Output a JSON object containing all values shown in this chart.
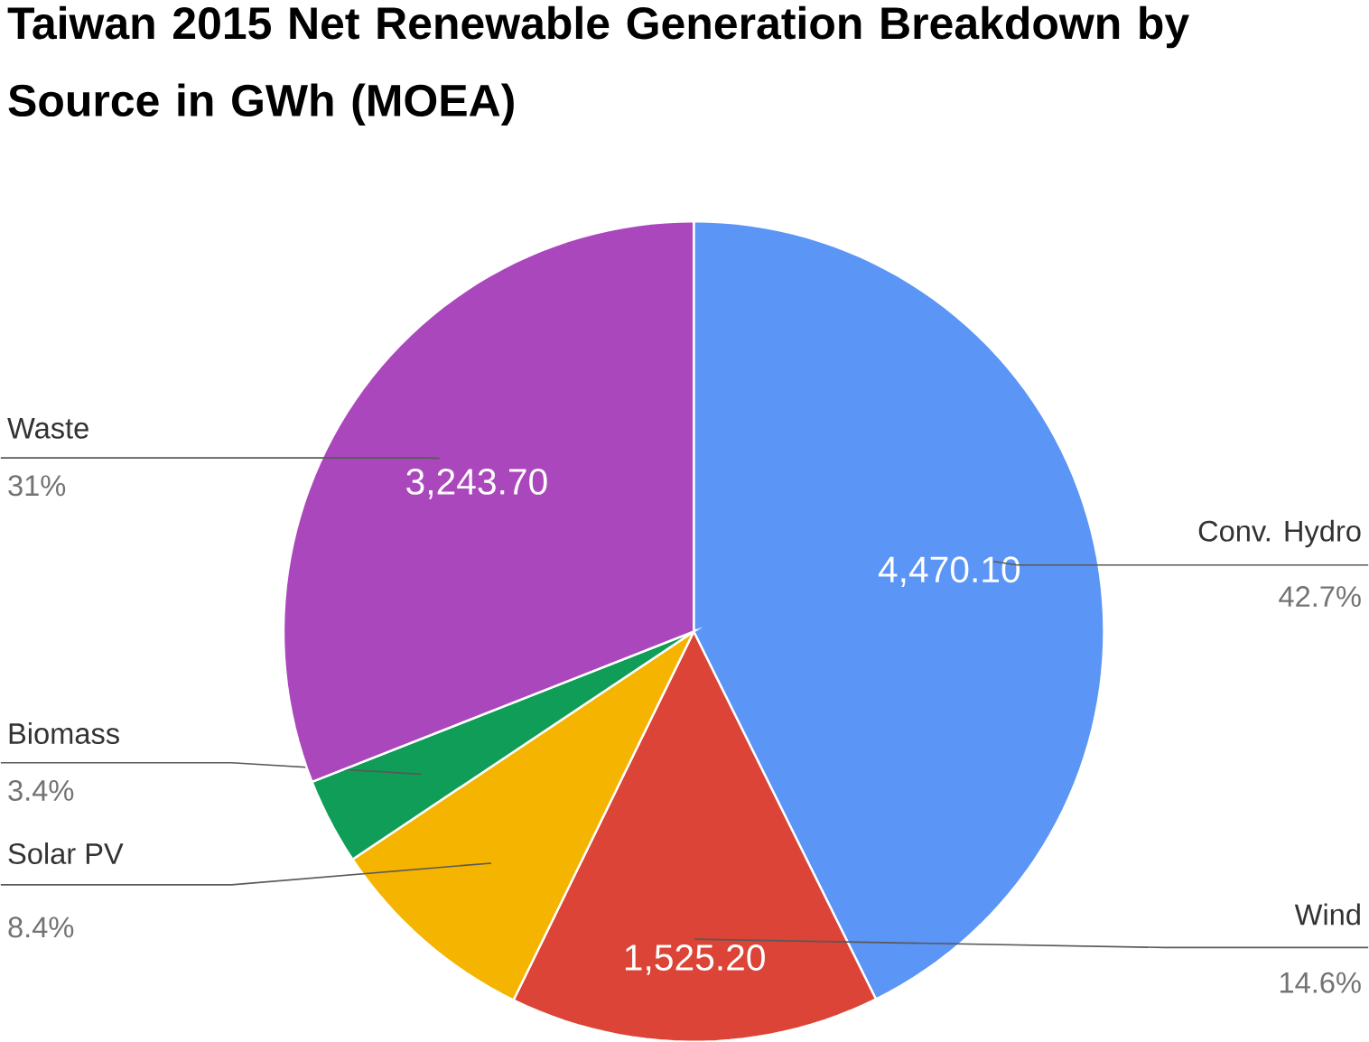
{
  "chart_data": {
    "type": "pie",
    "title": "Taiwan 2015 Net Renewable Generation Breakdown by Source in GWh (MOEA)",
    "categories": [
      "Conv. Hydro",
      "Wind",
      "Solar PV",
      "Biomass",
      "Waste"
    ],
    "values": [
      4470.1,
      1525.2,
      879,
      356,
      3243.7
    ],
    "colors": [
      "#5b95f5",
      "#db4437",
      "#f4b400",
      "#0f9d58",
      "#ab47bc"
    ],
    "value_labels": [
      "4,470.10",
      "1,525.20",
      null,
      null,
      "3,243.70"
    ],
    "annotations": [
      "42.7%",
      "14.6%",
      "8.4%",
      "3.4%",
      "31%"
    ]
  }
}
